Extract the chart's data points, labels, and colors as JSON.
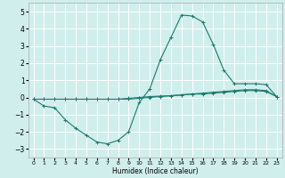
{
  "xlabel": "Humidex (Indice chaleur)",
  "x": [
    0,
    1,
    2,
    3,
    4,
    5,
    6,
    7,
    8,
    9,
    10,
    11,
    12,
    13,
    14,
    15,
    16,
    17,
    18,
    19,
    20,
    21,
    22,
    23
  ],
  "line_peak": [
    -0.1,
    -0.5,
    -0.6,
    -1.3,
    -1.8,
    -2.2,
    -2.6,
    -2.7,
    -2.5,
    -2.0,
    -0.3,
    0.5,
    2.2,
    3.5,
    4.8,
    4.75,
    4.4,
    3.1,
    1.6,
    0.8,
    0.8,
    0.8,
    0.75,
    0.05
  ],
  "line_flat1": [
    -0.1,
    -0.1,
    -0.1,
    -0.1,
    -0.1,
    -0.1,
    -0.1,
    -0.1,
    -0.1,
    -0.05,
    0.0,
    0.05,
    0.08,
    0.1,
    0.15,
    0.2,
    0.25,
    0.3,
    0.35,
    0.4,
    0.45,
    0.45,
    0.4,
    0.05
  ],
  "line_flat2": [
    -0.1,
    -0.1,
    -0.1,
    -0.1,
    -0.1,
    -0.1,
    -0.1,
    -0.1,
    -0.1,
    -0.1,
    -0.05,
    0.0,
    0.05,
    0.1,
    0.15,
    0.2,
    0.2,
    0.25,
    0.3,
    0.35,
    0.4,
    0.4,
    0.35,
    0.05
  ],
  "ylim": [
    -3.5,
    5.5
  ],
  "yticks": [
    -3,
    -2,
    -1,
    0,
    1,
    2,
    3,
    4,
    5
  ],
  "xticks": [
    0,
    1,
    2,
    3,
    4,
    5,
    6,
    7,
    8,
    9,
    10,
    11,
    12,
    13,
    14,
    15,
    16,
    17,
    18,
    19,
    20,
    21,
    22,
    23
  ],
  "line_color": "#1a7a6e",
  "bg_color": "#d0eeec",
  "grid_color": "#ffffff"
}
